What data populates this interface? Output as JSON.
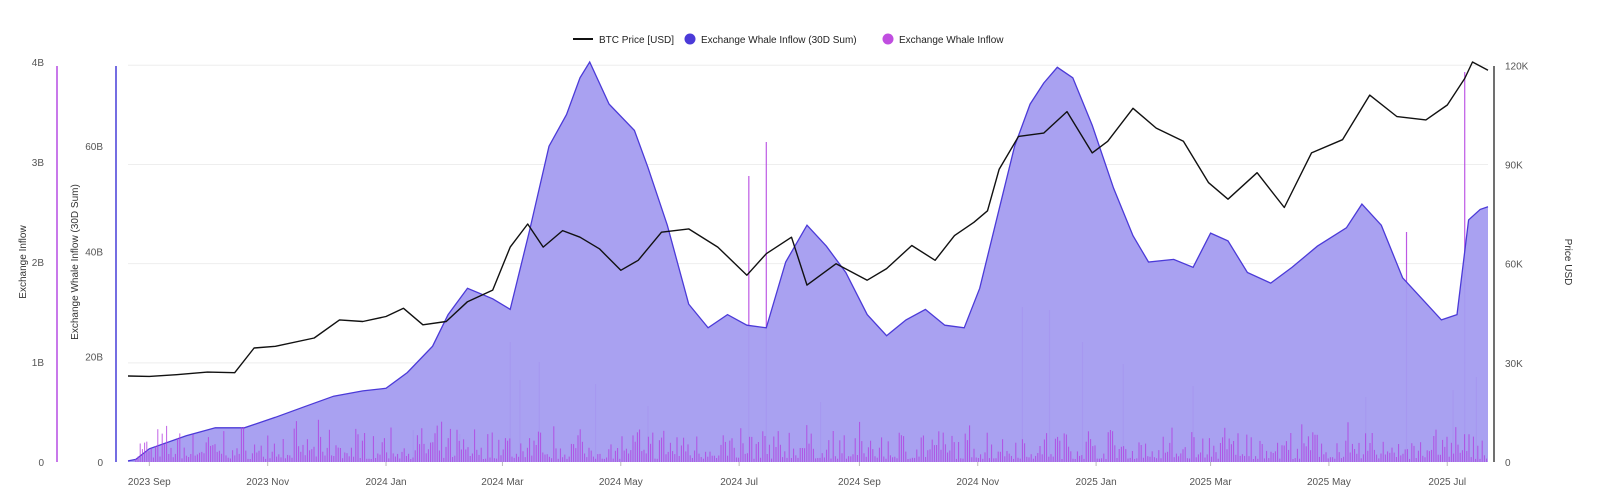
{
  "chart_data": {
    "type": "area",
    "legend": {
      "placement": "top-center",
      "items": [
        {
          "label": "BTC Price [USD]",
          "marker": "line",
          "color": "#111111"
        },
        {
          "label": "Exchange Whale Inflow (30D Sum)",
          "marker": "dot",
          "color": "#4b3ad8"
        },
        {
          "label": "Exchange Whale Inflow",
          "marker": "dot",
          "color": "#c04ee0"
        }
      ]
    },
    "x_axis": {
      "type": "date",
      "range": [
        "2023-08-21",
        "2025-07-22"
      ],
      "ticks": [
        {
          "date": "2023-09-01",
          "label": "2023 Sep"
        },
        {
          "date": "2023-11-01",
          "label": "2023 Nov"
        },
        {
          "date": "2024-01-01",
          "label": "2024 Jan"
        },
        {
          "date": "2024-03-01",
          "label": "2024 Mar"
        },
        {
          "date": "2024-05-01",
          "label": "2024 May"
        },
        {
          "date": "2024-07-01",
          "label": "2024 Jul"
        },
        {
          "date": "2024-09-01",
          "label": "2024 Sep"
        },
        {
          "date": "2024-11-01",
          "label": "2024 Nov"
        },
        {
          "date": "2025-01-01",
          "label": "2025 Jan"
        },
        {
          "date": "2025-03-01",
          "label": "2025 Mar"
        },
        {
          "date": "2025-05-01",
          "label": "2025 May"
        },
        {
          "date": "2025-07-01",
          "label": "2025 Jul"
        }
      ]
    },
    "y_axes": {
      "inflow": {
        "title": "Exchange Inflow",
        "range": [
          0,
          4000000000
        ],
        "ticks": [
          {
            "v": 0,
            "label": "0"
          },
          {
            "v": 1000000000,
            "label": "1B"
          },
          {
            "v": 2000000000,
            "label": "2B"
          },
          {
            "v": 3000000000,
            "label": "3B"
          },
          {
            "v": 4000000000,
            "label": "4B"
          }
        ],
        "color": "#b03ee0"
      },
      "inflow_30d": {
        "title": "Exchange Whale Inflow (30D Sum)",
        "range": [
          0,
          76000000000
        ],
        "ticks": [
          {
            "v": 0,
            "label": "0"
          },
          {
            "v": 20000000000,
            "label": "20B"
          },
          {
            "v": 40000000000,
            "label": "40B"
          },
          {
            "v": 60000000000,
            "label": "60B"
          }
        ],
        "color": "#3a2fd6"
      },
      "price": {
        "title": "Price USD",
        "range": [
          0,
          121000
        ],
        "ticks": [
          {
            "v": 0,
            "label": "0"
          },
          {
            "v": 30000,
            "label": "30K"
          },
          {
            "v": 60000,
            "label": "60K"
          },
          {
            "v": 90000,
            "label": "90K"
          },
          {
            "v": 120000,
            "label": "120K"
          }
        ],
        "color": "#111111"
      }
    },
    "grid": true,
    "series": [
      {
        "name": "Exchange Whale Inflow (30D Sum)",
        "kind": "area",
        "axis": "inflow_30d",
        "color": "#4b3ad8",
        "fill": "#a49cf0",
        "points": [
          [
            "2023-08-21",
            200000000.0
          ],
          [
            "2023-08-25",
            500000000.0
          ],
          [
            "2023-09-01",
            2500000000.0
          ],
          [
            "2023-09-20",
            5000000000.0
          ],
          [
            "2023-10-05",
            6500000000.0
          ],
          [
            "2023-10-20",
            6500000000.0
          ],
          [
            "2023-11-05",
            8500000000.0
          ],
          [
            "2023-11-20",
            10500000000.0
          ],
          [
            "2023-12-05",
            12500000000.0
          ],
          [
            "2023-12-20",
            13500000000.0
          ],
          [
            "2024-01-01",
            14000000000.0
          ],
          [
            "2024-01-12",
            17000000000.0
          ],
          [
            "2024-01-25",
            22000000000.0
          ],
          [
            "2024-02-02",
            28000000000.0
          ],
          [
            "2024-02-12",
            33000000000.0
          ],
          [
            "2024-02-25",
            31000000000.0
          ],
          [
            "2024-03-05",
            29000000000.0
          ],
          [
            "2024-03-15",
            44000000000.0
          ],
          [
            "2024-03-25",
            60000000000.0
          ],
          [
            "2024-04-03",
            66000000000.0
          ],
          [
            "2024-04-10",
            73000000000.0
          ],
          [
            "2024-04-15",
            76000000000.0
          ],
          [
            "2024-04-25",
            68000000000.0
          ],
          [
            "2024-05-08",
            63000000000.0
          ],
          [
            "2024-05-15",
            56000000000.0
          ],
          [
            "2024-05-25",
            45000000000.0
          ],
          [
            "2024-06-05",
            30000000000.0
          ],
          [
            "2024-06-15",
            25500000000.0
          ],
          [
            "2024-06-25",
            28000000000.0
          ],
          [
            "2024-07-05",
            26000000000.0
          ],
          [
            "2024-07-15",
            25500000000.0
          ],
          [
            "2024-07-25",
            38000000000.0
          ],
          [
            "2024-08-05",
            45000000000.0
          ],
          [
            "2024-08-15",
            41000000000.0
          ],
          [
            "2024-08-25",
            36000000000.0
          ],
          [
            "2024-09-05",
            28000000000.0
          ],
          [
            "2024-09-15",
            24000000000.0
          ],
          [
            "2024-09-25",
            27000000000.0
          ],
          [
            "2024-10-05",
            29000000000.0
          ],
          [
            "2024-10-15",
            26000000000.0
          ],
          [
            "2024-10-25",
            25500000000.0
          ],
          [
            "2024-11-02",
            33000000000.0
          ],
          [
            "2024-11-10",
            45000000000.0
          ],
          [
            "2024-11-20",
            60000000000.0
          ],
          [
            "2024-11-28",
            68000000000.0
          ],
          [
            "2024-12-05",
            72000000000.0
          ],
          [
            "2024-12-12",
            75000000000.0
          ],
          [
            "2024-12-20",
            73000000000.0
          ],
          [
            "2024-12-30",
            64000000000.0
          ],
          [
            "2025-01-10",
            52000000000.0
          ],
          [
            "2025-01-20",
            43000000000.0
          ],
          [
            "2025-01-28",
            38000000000.0
          ],
          [
            "2025-02-10",
            38500000000.0
          ],
          [
            "2025-02-20",
            37000000000.0
          ],
          [
            "2025-03-01",
            43500000000.0
          ],
          [
            "2025-03-10",
            42000000000.0
          ],
          [
            "2025-03-20",
            36000000000.0
          ],
          [
            "2025-04-01",
            34000000000.0
          ],
          [
            "2025-04-12",
            37000000000.0
          ],
          [
            "2025-04-25",
            41000000000.0
          ],
          [
            "2025-05-10",
            44500000000.0
          ],
          [
            "2025-05-18",
            49000000000.0
          ],
          [
            "2025-05-28",
            45000000000.0
          ],
          [
            "2025-06-08",
            35000000000.0
          ],
          [
            "2025-06-18",
            31000000000.0
          ],
          [
            "2025-06-28",
            27000000000.0
          ],
          [
            "2025-07-06",
            28000000000.0
          ],
          [
            "2025-07-12",
            46000000000.0
          ],
          [
            "2025-07-18",
            48000000000.0
          ],
          [
            "2025-07-22",
            48500000000.0
          ]
        ]
      },
      {
        "name": "BTC Price [USD]",
        "kind": "line",
        "axis": "price",
        "color": "#111111",
        "points": [
          [
            "2023-08-21",
            26000
          ],
          [
            "2023-09-01",
            25900
          ],
          [
            "2023-09-15",
            26400
          ],
          [
            "2023-10-01",
            27200
          ],
          [
            "2023-10-15",
            27000
          ],
          [
            "2023-10-25",
            34500
          ],
          [
            "2023-11-05",
            35000
          ],
          [
            "2023-11-25",
            37500
          ],
          [
            "2023-12-08",
            43000
          ],
          [
            "2023-12-20",
            42500
          ],
          [
            "2024-01-01",
            44000
          ],
          [
            "2024-01-10",
            46500
          ],
          [
            "2024-01-20",
            41500
          ],
          [
            "2024-02-01",
            42500
          ],
          [
            "2024-02-12",
            48500
          ],
          [
            "2024-02-25",
            52000
          ],
          [
            "2024-03-05",
            65000
          ],
          [
            "2024-03-14",
            72000
          ],
          [
            "2024-03-22",
            65000
          ],
          [
            "2024-04-01",
            70000
          ],
          [
            "2024-04-10",
            68000
          ],
          [
            "2024-04-20",
            64500
          ],
          [
            "2024-05-01",
            58000
          ],
          [
            "2024-05-10",
            61000
          ],
          [
            "2024-05-22",
            69500
          ],
          [
            "2024-06-05",
            70500
          ],
          [
            "2024-06-20",
            65000
          ],
          [
            "2024-07-05",
            56500
          ],
          [
            "2024-07-15",
            63000
          ],
          [
            "2024-07-28",
            68000
          ],
          [
            "2024-08-05",
            53500
          ],
          [
            "2024-08-20",
            60000
          ],
          [
            "2024-09-05",
            55000
          ],
          [
            "2024-09-15",
            58500
          ],
          [
            "2024-09-28",
            65500
          ],
          [
            "2024-10-10",
            61000
          ],
          [
            "2024-10-20",
            68500
          ],
          [
            "2024-10-30",
            72500
          ],
          [
            "2024-11-06",
            76000
          ],
          [
            "2024-11-12",
            88500
          ],
          [
            "2024-11-22",
            98500
          ],
          [
            "2024-12-05",
            99500
          ],
          [
            "2024-12-17",
            106000
          ],
          [
            "2024-12-30",
            93500
          ],
          [
            "2025-01-07",
            97000
          ],
          [
            "2025-01-20",
            107000
          ],
          [
            "2025-02-01",
            101000
          ],
          [
            "2025-02-15",
            97000
          ],
          [
            "2025-02-28",
            84500
          ],
          [
            "2025-03-10",
            79500
          ],
          [
            "2025-03-25",
            87500
          ],
          [
            "2025-04-08",
            77000
          ],
          [
            "2025-04-22",
            93500
          ],
          [
            "2025-05-08",
            97500
          ],
          [
            "2025-05-22",
            111000
          ],
          [
            "2025-06-05",
            104500
          ],
          [
            "2025-06-20",
            103500
          ],
          [
            "2025-07-01",
            108000
          ],
          [
            "2025-07-10",
            116000
          ],
          [
            "2025-07-14",
            121000
          ],
          [
            "2025-07-22",
            118500
          ]
        ]
      },
      {
        "name": "Exchange Whale Inflow",
        "kind": "spikes",
        "axis": "inflow",
        "color": "#b23de0",
        "points": [
          [
            "2024-01-15",
            320000000
          ],
          [
            "2024-02-08",
            280000000
          ],
          [
            "2024-03-05",
            1200000000
          ],
          [
            "2024-03-10",
            820000000
          ],
          [
            "2024-03-20",
            1000000000
          ],
          [
            "2024-04-18",
            780000000
          ],
          [
            "2024-05-15",
            560000000
          ],
          [
            "2024-07-06",
            2860000000
          ],
          [
            "2024-07-15",
            3200000000
          ],
          [
            "2024-08-12",
            600000000
          ],
          [
            "2024-11-24",
            1550000000
          ],
          [
            "2024-12-08",
            1520000000
          ],
          [
            "2024-12-25",
            1200000000
          ],
          [
            "2025-01-15",
            980000000
          ],
          [
            "2025-02-20",
            760000000
          ],
          [
            "2025-05-20",
            650000000
          ],
          [
            "2025-06-10",
            2300000000
          ],
          [
            "2025-07-04",
            720000000
          ],
          [
            "2025-07-10",
            3900000000
          ],
          [
            "2025-07-16",
            850000000
          ]
        ]
      }
    ]
  }
}
